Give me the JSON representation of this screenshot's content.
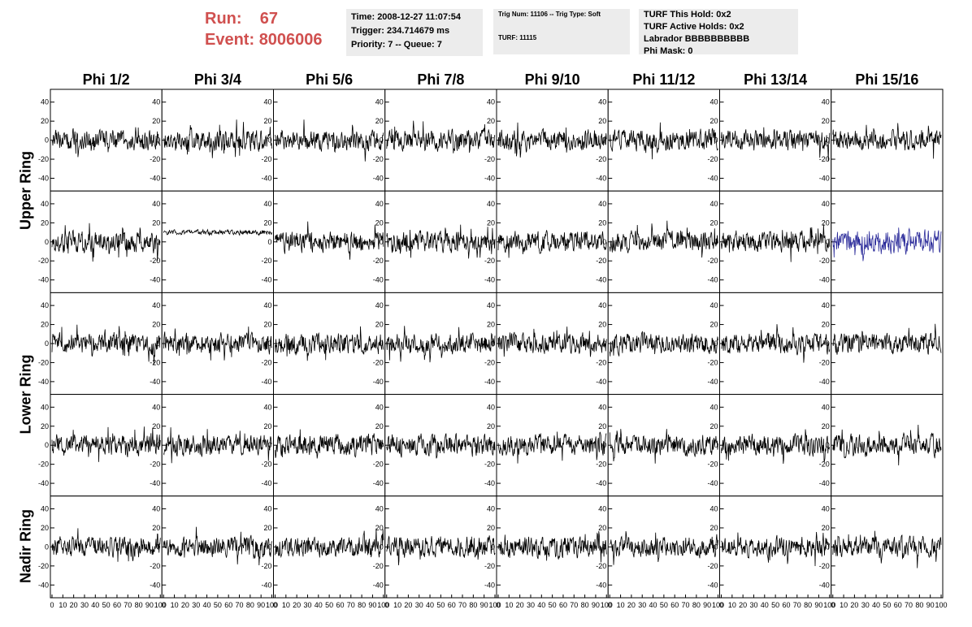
{
  "run_box": {
    "run_label": "Run:",
    "run_value": "67",
    "event_label": "Event:",
    "event_value": "8006006"
  },
  "info_time": {
    "time": "Time: 2008-12-27 11:07:54",
    "trigger": "Trigger: 234.714679 ms",
    "priority": "Priority: 7 -- Queue: 7"
  },
  "info_trig": {
    "trig": "Trig Num: 11106 -- Trig Type: Soft",
    "turf": "TURF: 11115"
  },
  "info_turf": {
    "hold": "TURF This Hold: 0x2",
    "active": "TURF Active Holds: 0x2",
    "labrador": "Labrador BBBBBBBBBB",
    "phimask": "Phi Mask: 0"
  },
  "columns": [
    "Phi 1/2",
    "Phi 3/4",
    "Phi 5/6",
    "Phi 7/8",
    "Phi 9/10",
    "Phi 11/12",
    "Phi 13/14",
    "Phi 15/16"
  ],
  "rows": [
    {
      "label": "Upper Ring",
      "span": [
        0,
        1
      ]
    },
    {
      "label": "Lower Ring",
      "span": [
        2,
        3
      ]
    },
    {
      "label": "Nadir Ring",
      "span": [
        4,
        4
      ]
    }
  ],
  "chart_data": {
    "type": "line",
    "grid_rows": 5,
    "grid_cols": 8,
    "xlim": [
      0,
      100
    ],
    "ylim": [
      -50,
      50
    ],
    "x_tick_labels": [
      "0",
      "10",
      "20",
      "30",
      "40",
      "50",
      "60",
      "70",
      "80",
      "90",
      "100"
    ],
    "y_tick_labels": [
      "40",
      "20",
      "0",
      "-20",
      "-40"
    ],
    "highlight_panel": {
      "row": 1,
      "col": 7,
      "color": "#2b2b9a"
    },
    "flat_panel": {
      "row": 1,
      "col": 1
    },
    "line_color": "#000000",
    "samples_per_trace": 256,
    "typical_amplitude": 14
  }
}
